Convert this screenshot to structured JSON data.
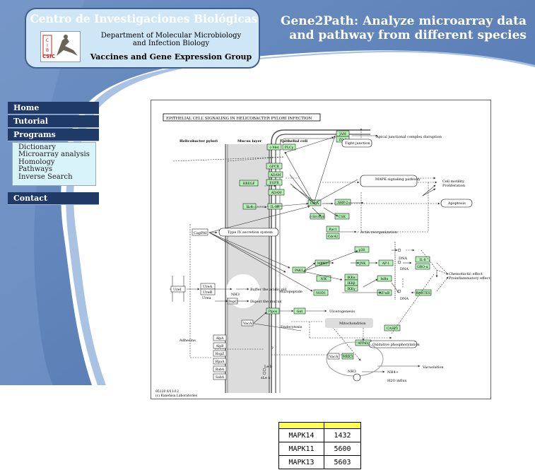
{
  "header": {
    "institution": "Centro de Investigaciones Biológicas",
    "department_line1": "Department of Molecular Microbiology",
    "department_line2": "and Infection Biology",
    "group": "Vaccines and Gene Expression Group",
    "logo_letters": "CSIC",
    "app_title_line1": "Gene2Path: Analyze microarray data",
    "app_title_line2": "and pathway from different species"
  },
  "nav": {
    "home": "Home",
    "tutorial": "Tutorial",
    "programs": "Programs",
    "programs_items": [
      "Dictionary",
      "Microarray analysis",
      "Homology",
      "Pathways",
      "Inverse Search"
    ],
    "contact": "Contact"
  },
  "pathway": {
    "title": "EPITHELIAL CELL SIGNALING IN HELICOBACTER PYLORI INFECTION",
    "col_helicobacter": "Helicobacter pylori",
    "col_mucus": "Mucus layer",
    "col_epithelial": "Epithelial cell",
    "genes": [
      "JAM",
      "ZO-1",
      "c-Met",
      "PLCγ",
      "GPCR",
      "ADAM",
      "EGFR",
      "HBEGF",
      "ADAM",
      "IL-8",
      "IL-8R",
      "CagA",
      "SHP-2",
      "c-Src/Lyn",
      "CSK",
      "Rac1",
      "Cdc42",
      "p38",
      "MKK3",
      "JNK",
      "AP-1",
      "IL-8",
      "GRO-α",
      "PAK1",
      "NIK",
      "IKKα",
      "IKKβ",
      "IKKγ",
      "IκBα",
      "NF-κB",
      "RANTES",
      "NOD1",
      "Pipox",
      "Gαt",
      "CASP3",
      "ATP6V",
      "MKK3"
    ],
    "labels": {
      "tight_junction": "Tight junction",
      "apical": "Apical junctional complex disruption",
      "mapk": "MAPK signaling pathway",
      "cell_motility": "Cell motility",
      "proliferation": "Proliferation",
      "apoptosis": "Apoptosis",
      "actin": "Actin reorganization",
      "dna1": "DNA",
      "dna2": "DNA",
      "dna3": "DNA",
      "chemotactic": "Chemotactic effect",
      "proinflammatory": "Proinflammatory effect",
      "cagpai": "CagPAI",
      "t4ss": "Type IV secretion system",
      "ure1": "UreA",
      "ure2": "UreB",
      "urei": "UreI",
      "urea": "Urea",
      "nh3": "NH3",
      "buffer": "Buffer the acidic pH",
      "pepc": "PepC",
      "digest": "Digest the mucus",
      "muropeptide": "Muropeptide",
      "vaca": "VacA",
      "vaca2": "VacA",
      "endocytosis": "Endocytosis",
      "mitochondrion": "Mitochondrion",
      "ulcerogenesis": "Ulcerogenesis",
      "oxidative": "Oxidative phosphorylation",
      "vacuolation": "Vacuolation",
      "h2o": "H2O influx",
      "nh3b": "NH3",
      "nh4": "NH4+",
      "adhesins": "Adhesins",
      "alpa": "AlpA",
      "alpb": "AlpB",
      "hopz": "HopZ",
      "hpaa": "HpaA",
      "baba": "BabA",
      "saba": "SabA",
      "leb": "Le b",
      "slex": "sLe x",
      "q": "?",
      "plus": "+p",
      "code": "05120 6/11/12",
      "copyright": "(c) Kanehisa Laboratories"
    }
  },
  "table": {
    "rows": [
      [
        "MAPK14",
        "1432"
      ],
      [
        "MAPK11",
        "5600"
      ],
      [
        "MAPK13",
        "5603"
      ]
    ]
  },
  "colors": {
    "header_blue": "#5b7fb8",
    "nav_dark": "#1f3a66",
    "submenu_bg": "#d8f3fa",
    "gene_green": "#b7f0b7",
    "table_header": "#ffff55"
  }
}
